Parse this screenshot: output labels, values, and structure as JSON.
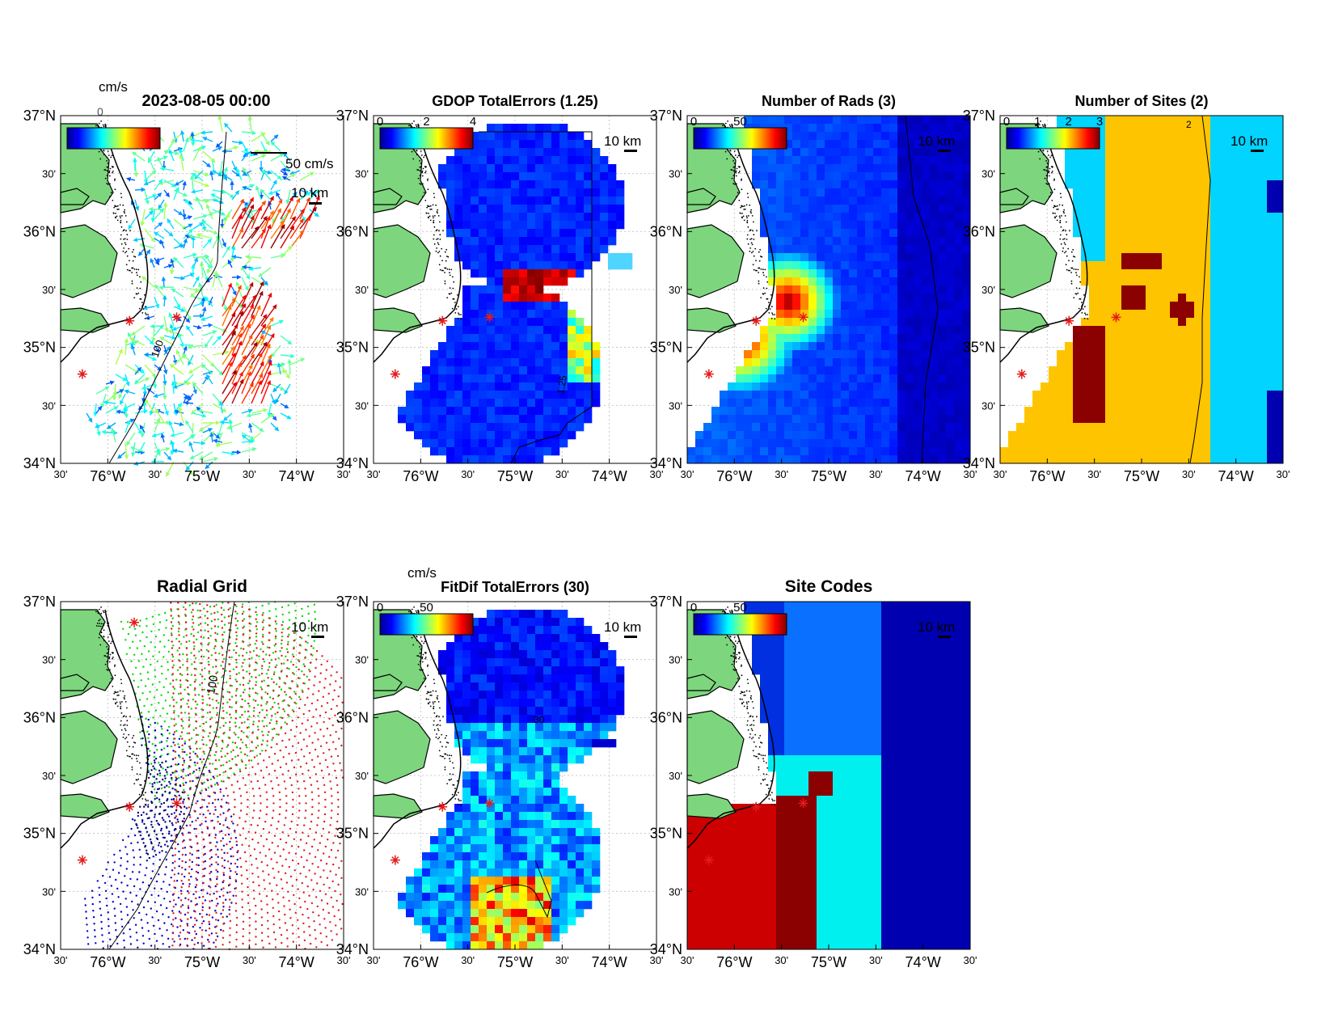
{
  "axis_labels": {
    "lat": [
      "37°N",
      "30'",
      "36°N",
      "30'",
      "35°N",
      "30'",
      "34°N"
    ],
    "lon": [
      "30'",
      "76°W",
      "30'",
      "75°W",
      "30'",
      "74°W",
      "30'"
    ]
  },
  "scale_bar_label": "10 km",
  "colors": {
    "land": "#7dd67d",
    "coast": "#000000",
    "site_marker": "#e41a1c",
    "grid": "#c8c8c8"
  },
  "sites": [
    {
      "lon": -75.97,
      "lat": 36.82
    },
    {
      "lon": -76.02,
      "lat": 35.23
    },
    {
      "lon": -75.52,
      "lat": 35.26
    },
    {
      "lon": -76.52,
      "lat": 34.77
    }
  ],
  "panels": [
    {
      "id": "total-velocity",
      "title": "2023-08-05 00:00",
      "colorbar_unit": "cm/s",
      "colorbar_ticks": [],
      "vector_label": "50 cm/s",
      "contour_label": "100",
      "overprint_text": "0"
    },
    {
      "id": "gdop-total-errors",
      "title": "GDOP TotalErrors (1.25)",
      "colorbar_unit": "",
      "colorbar_ticks": [
        "0",
        "2",
        "4"
      ],
      "contour_label": "1.25"
    },
    {
      "id": "number-of-rads",
      "title": "Number of Rads (3)",
      "colorbar_unit": "",
      "colorbar_ticks": [
        "0",
        "50"
      ],
      "contour_label": "3"
    },
    {
      "id": "number-of-sites",
      "title": "Number of Sites (2)",
      "colorbar_unit": "",
      "colorbar_ticks": [
        "0",
        "1",
        "2",
        "3"
      ],
      "contour_label": "2"
    },
    {
      "id": "radial-grid",
      "title": "Radial Grid",
      "contour_label": "100"
    },
    {
      "id": "fitdif-total-errors",
      "title": "FitDif TotalErrors (30)",
      "colorbar_unit": "cm/s",
      "colorbar_ticks": [
        "0",
        "50"
      ],
      "contour_label": "30"
    },
    {
      "id": "site-codes",
      "title": "Site Codes",
      "colorbar_unit": "",
      "colorbar_ticks": [
        "0",
        "50"
      ]
    }
  ]
}
